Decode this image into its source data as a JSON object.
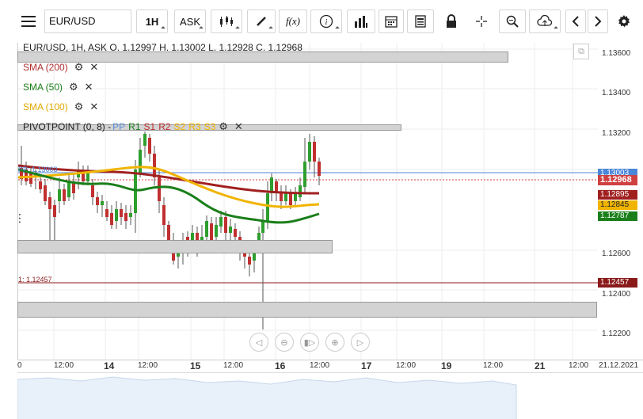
{
  "toolbar": {
    "symbol": "EUR/USD",
    "timeframe": "1H",
    "price_type": "ASK",
    "fx_label": "f(x)",
    "info_label": "i"
  },
  "chart": {
    "header": "EUR/USD, 1H, ASK   O. 1.12997 H. 1.13002 L. 1.12928 C. 1.12968",
    "indicators": [
      {
        "label": "SMA (200)",
        "color": "#b03030"
      },
      {
        "label": "SMA (50)",
        "color": "#1a7f1a"
      },
      {
        "label": "SMA (100)",
        "color": "#f0b400"
      }
    ],
    "pivot_prefix": "PIVOTPOINT (0, 8) - ",
    "pivot_items": [
      {
        "label": "PP",
        "color": "#5b8fd8"
      },
      {
        "label": "R1",
        "color": "#1a7f1a"
      },
      {
        "label": "S1",
        "color": "#c03030"
      },
      {
        "label": "R2",
        "color": "#c03030"
      },
      {
        "label": "S2",
        "color": "#f0b400"
      },
      {
        "label": "R3",
        "color": "#f0b400"
      },
      {
        "label": "S3",
        "color": "#f0b400"
      }
    ],
    "left_labels": {
      "pp": "PP: 1.13003",
      "s1": "1: 1.12457"
    },
    "price_ticks": [
      "1.13600",
      "1.13400",
      "1.13200",
      "1.12600",
      "1.12400",
      "1.12200"
    ],
    "price_tags": [
      {
        "value": "1.13003",
        "color": "#4a86d8"
      },
      {
        "value": "1.12968",
        "color": "#d04040"
      },
      {
        "value": "1.12895",
        "color": "#a02020"
      },
      {
        "value": "1.12845",
        "color": "#f0b400"
      },
      {
        "value": "1.12787",
        "color": "#1a7f1a"
      },
      {
        "value": "1.12457",
        "color": "#8a1a1a"
      }
    ],
    "date_ticks": [
      {
        "label": "0",
        "bold": false
      },
      {
        "label": "12:00",
        "bold": false
      },
      {
        "label": "14",
        "bold": true
      },
      {
        "label": "12:00",
        "bold": false
      },
      {
        "label": "15",
        "bold": true
      },
      {
        "label": "12:00",
        "bold": false
      },
      {
        "label": "16",
        "bold": true
      },
      {
        "label": "12:00",
        "bold": false
      },
      {
        "label": "17",
        "bold": true
      },
      {
        "label": "12:00",
        "bold": false
      },
      {
        "label": "19",
        "bold": true
      },
      {
        "label": "12:00",
        "bold": false
      },
      {
        "label": "21",
        "bold": true
      },
      {
        "label": "12:00",
        "bold": false
      },
      {
        "label": "21.12.2021",
        "bold": false
      }
    ]
  }
}
